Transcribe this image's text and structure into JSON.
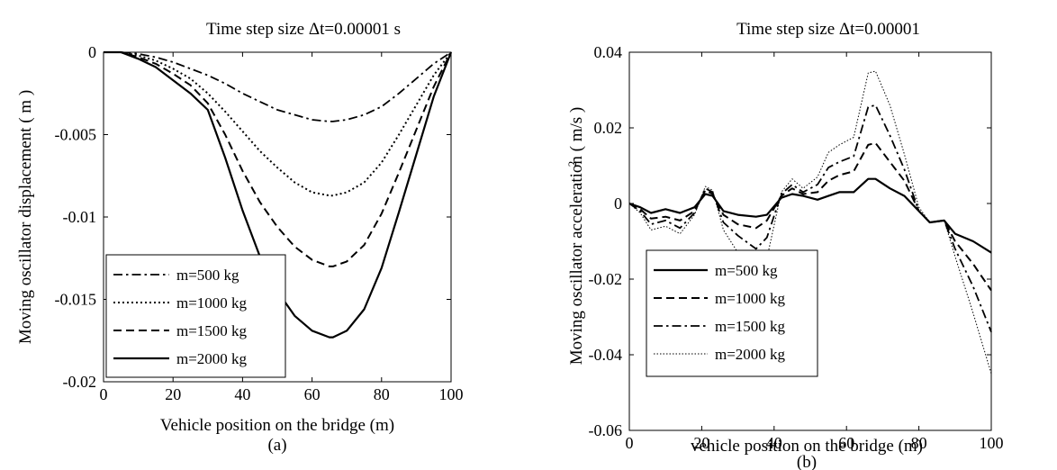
{
  "chart_data": [
    {
      "type": "line",
      "title": "Time step size Δt=0.00001 s",
      "xlabel": "Vehicle position on the bridge (m)",
      "ylabel": "Moving oscillator displacement ( m )",
      "panel_label": "(a)",
      "xlim": [
        0,
        100
      ],
      "ylim": [
        -0.02,
        0
      ],
      "xticks": [
        0,
        20,
        40,
        60,
        80,
        100
      ],
      "xtick_labels": [
        "0",
        "20",
        "40",
        "60",
        "80",
        "100"
      ],
      "yticks": [
        -0.02,
        -0.015,
        -0.01,
        -0.005,
        0
      ],
      "ytick_labels": [
        "-0.02",
        "-0.015",
        "-0.01",
        "-0.005",
        "0"
      ],
      "grid": false,
      "legend_position": "bottom-left",
      "series": [
        {
          "name": "m=500 kg",
          "style": "dashdot",
          "x": [
            0,
            5,
            10,
            15,
            20,
            25,
            30,
            35,
            40,
            45,
            50,
            55,
            60,
            65,
            66,
            70,
            75,
            80,
            85,
            90,
            95,
            100
          ],
          "y": [
            0,
            0,
            -0.0001,
            -0.0003,
            -0.0006,
            -0.001,
            -0.0014,
            -0.0019,
            -0.0025,
            -0.003,
            -0.0035,
            -0.0038,
            -0.0041,
            -0.0042,
            -0.0042,
            -0.0041,
            -0.0038,
            -0.0033,
            -0.0025,
            -0.0016,
            -0.0007,
            0
          ]
        },
        {
          "name": "m=1000 kg",
          "style": "dotted",
          "x": [
            0,
            5,
            10,
            15,
            20,
            25,
            30,
            35,
            40,
            45,
            50,
            55,
            60,
            65,
            66,
            70,
            75,
            80,
            85,
            90,
            95,
            100
          ],
          "y": [
            0,
            0,
            -0.0002,
            -0.0005,
            -0.001,
            -0.0016,
            -0.0025,
            -0.0036,
            -0.0048,
            -0.006,
            -0.007,
            -0.0079,
            -0.0085,
            -0.0087,
            -0.0087,
            -0.0085,
            -0.0079,
            -0.0067,
            -0.005,
            -0.0032,
            -0.0014,
            0
          ]
        },
        {
          "name": "m=1500 kg",
          "style": "dashed",
          "x": [
            0,
            5,
            10,
            15,
            20,
            25,
            30,
            35,
            40,
            45,
            50,
            55,
            60,
            65,
            66,
            70,
            75,
            80,
            85,
            90,
            95,
            100
          ],
          "y": [
            0,
            0,
            -0.0003,
            -0.0007,
            -0.0013,
            -0.002,
            -0.0031,
            -0.005,
            -0.0072,
            -0.0091,
            -0.0106,
            -0.0118,
            -0.0126,
            -0.013,
            -0.013,
            -0.0127,
            -0.0117,
            -0.0098,
            -0.0073,
            -0.0047,
            -0.0021,
            0
          ]
        },
        {
          "name": "m=2000 kg",
          "style": "solid",
          "x": [
            0,
            5,
            10,
            15,
            20,
            25,
            30,
            35,
            40,
            45,
            50,
            55,
            60,
            65,
            66,
            70,
            75,
            80,
            85,
            90,
            95,
            100
          ],
          "y": [
            0,
            0,
            -0.0004,
            -0.0009,
            -0.0017,
            -0.0025,
            -0.0035,
            -0.0064,
            -0.0096,
            -0.0124,
            -0.0145,
            -0.016,
            -0.0169,
            -0.0173,
            -0.0173,
            -0.0169,
            -0.0156,
            -0.0131,
            -0.0097,
            -0.0062,
            -0.0027,
            0
          ]
        }
      ]
    },
    {
      "type": "line",
      "title": "Time step size Δt=0.00001",
      "xlabel": "vehicle position on the bridge (m)",
      "ylabel": "Moving oscillator acceleration ( m/s )",
      "ylabel_superscript": "2",
      "panel_label": "(b)",
      "xlim": [
        0,
        100
      ],
      "ylim": [
        -0.06,
        0.04
      ],
      "xticks": [
        0,
        20,
        40,
        60,
        80,
        100
      ],
      "xtick_labels": [
        "0",
        "20",
        "40",
        "60",
        "80",
        "100"
      ],
      "yticks": [
        -0.06,
        -0.04,
        -0.02,
        0,
        0.02,
        0.04
      ],
      "ytick_labels": [
        "-0.06",
        "-0.04",
        "-0.02",
        "0",
        "0.02",
        "0.04"
      ],
      "grid": false,
      "legend_position": "bottom-left",
      "series": [
        {
          "name": "m=500 kg",
          "style": "solid",
          "x": [
            0,
            3,
            6,
            10,
            14,
            18,
            21,
            23,
            26,
            30,
            35,
            38,
            42,
            45,
            48,
            52,
            55,
            58,
            62,
            66,
            68,
            72,
            76,
            80,
            83,
            87,
            90,
            95,
            100
          ],
          "y": [
            0,
            -0.001,
            -0.0025,
            -0.0015,
            -0.0025,
            -0.001,
            0.0025,
            0.002,
            -0.002,
            -0.003,
            -0.0035,
            -0.003,
            0.0015,
            0.0025,
            0.002,
            0.001,
            0.002,
            0.003,
            0.003,
            0.0065,
            0.0065,
            0.004,
            0.002,
            -0.002,
            -0.005,
            -0.0045,
            -0.008,
            -0.01,
            -0.013
          ]
        },
        {
          "name": "m=1000 kg",
          "style": "dashed",
          "x": [
            0,
            3,
            6,
            10,
            14,
            18,
            21,
            23,
            26,
            30,
            35,
            38,
            42,
            45,
            48,
            52,
            55,
            58,
            62,
            66,
            68,
            72,
            76,
            80,
            83,
            87,
            90,
            95,
            100
          ],
          "y": [
            0,
            -0.0015,
            -0.004,
            -0.0035,
            -0.0045,
            -0.002,
            0.0035,
            0.0025,
            -0.003,
            -0.0055,
            -0.0065,
            -0.0045,
            0.002,
            0.004,
            0.0025,
            0.003,
            0.006,
            0.0075,
            0.0085,
            0.0155,
            0.016,
            0.011,
            0.006,
            -0.002,
            -0.005,
            -0.0045,
            -0.01,
            -0.016,
            -0.023
          ]
        },
        {
          "name": "m=1500 kg",
          "style": "dashdot",
          "x": [
            0,
            3,
            6,
            10,
            14,
            18,
            21,
            23,
            26,
            30,
            35,
            38,
            42,
            45,
            48,
            52,
            55,
            58,
            62,
            66,
            68,
            72,
            76,
            80,
            83,
            87,
            90,
            95,
            100
          ],
          "y": [
            0,
            -0.002,
            -0.0055,
            -0.0045,
            -0.0065,
            -0.0025,
            0.004,
            0.003,
            -0.005,
            -0.0085,
            -0.012,
            -0.009,
            0.0025,
            0.005,
            0.003,
            0.005,
            0.0095,
            0.011,
            0.0125,
            0.0255,
            0.026,
            0.018,
            0.009,
            -0.002,
            -0.005,
            -0.0045,
            -0.012,
            -0.022,
            -0.034
          ]
        },
        {
          "name": "m=2000 kg",
          "style": "thin-dotted",
          "x": [
            0,
            3,
            6,
            10,
            14,
            18,
            21,
            23,
            26,
            30,
            35,
            38,
            42,
            45,
            48,
            52,
            55,
            58,
            62,
            66,
            68,
            72,
            76,
            80,
            83,
            87,
            90,
            95,
            100
          ],
          "y": [
            0,
            -0.0025,
            -0.007,
            -0.006,
            -0.008,
            -0.003,
            0.0045,
            0.0035,
            -0.007,
            -0.013,
            -0.0175,
            -0.0145,
            0.003,
            0.0065,
            0.004,
            0.007,
            0.0135,
            0.0155,
            0.0175,
            0.0345,
            0.035,
            0.026,
            0.013,
            -0.001,
            -0.005,
            -0.0045,
            -0.014,
            -0.029,
            -0.045
          ]
        }
      ]
    }
  ]
}
